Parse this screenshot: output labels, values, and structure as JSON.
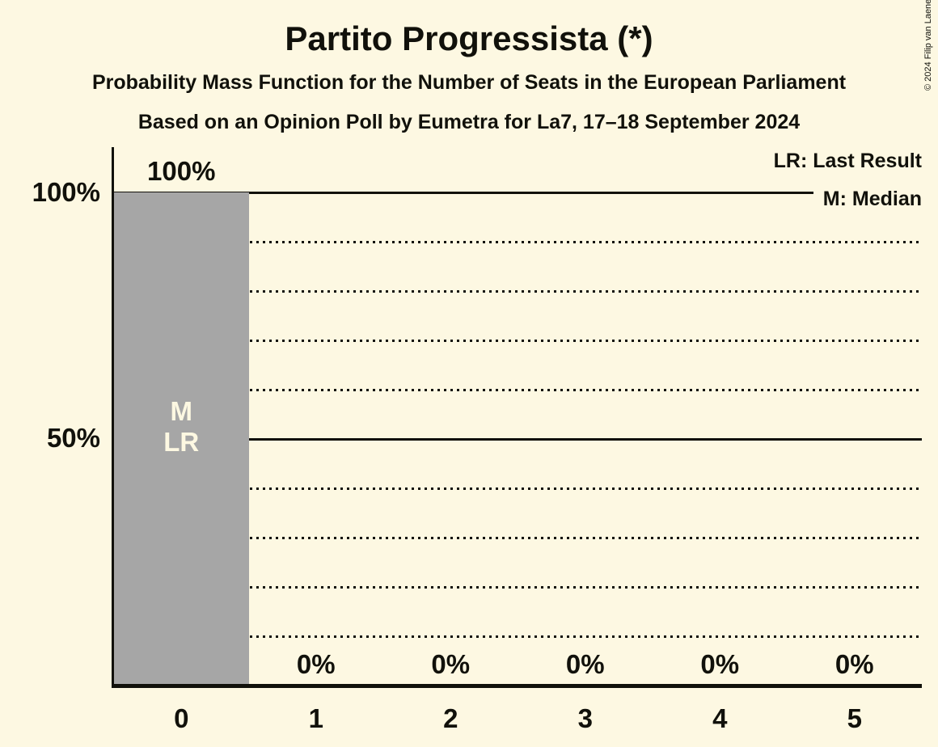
{
  "copyright": "© 2024 Filip van Laenen",
  "colors": {
    "background": "#fdf8e2",
    "bar": "#a6a6a6",
    "ink": "#11110b",
    "bar_label": "#fdf8e2"
  },
  "chart_data": {
    "type": "bar",
    "title": "Partito Progressista (*)",
    "subtitles": [
      "Probability Mass Function for the Number of Seats in the European Parliament",
      "Based on an Opinion Poll by Eumetra for La7, 17–18 September 2024"
    ],
    "categories": [
      "0",
      "1",
      "2",
      "3",
      "4",
      "5"
    ],
    "values": [
      100,
      0,
      0,
      0,
      0,
      0
    ],
    "value_labels": [
      "100%",
      "0%",
      "0%",
      "0%",
      "0%",
      "0%"
    ],
    "ylim": [
      0,
      100
    ],
    "yticks": [
      {
        "value": 100,
        "label": "100%"
      },
      {
        "value": 50,
        "label": "50%"
      }
    ],
    "solid_gridlines": [
      100,
      50
    ],
    "dotted_gridlines": [
      90,
      80,
      70,
      60,
      40,
      30,
      20,
      10
    ],
    "grid": "horizontal",
    "legend_position": "top-right",
    "legend_entries": [
      "LR: Last Result",
      "M: Median"
    ],
    "bar_annotations": [
      {
        "category": "0",
        "lines": [
          "M",
          "LR"
        ]
      }
    ]
  }
}
